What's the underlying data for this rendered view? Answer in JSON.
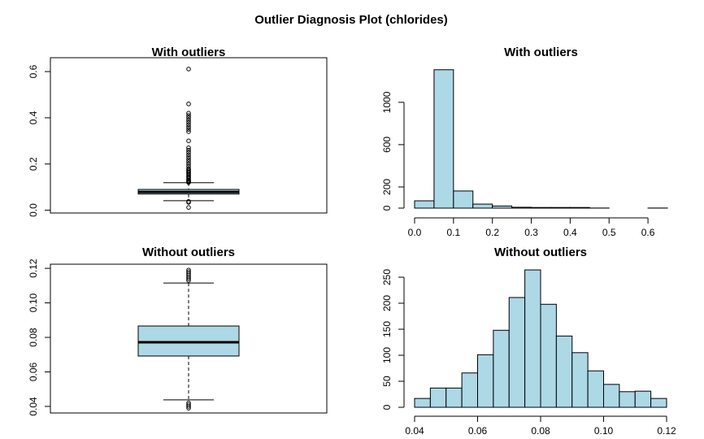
{
  "title": "Outlier Diagnosis Plot (chlorides)",
  "chart_data": [
    {
      "type": "box",
      "title": "With outliers",
      "color": "#add8e6",
      "q1": 0.07,
      "median": 0.079,
      "q3": 0.09,
      "whisker_low": 0.041,
      "whisker_high": 0.119,
      "outliers": [
        0.012,
        0.034,
        0.038,
        0.12,
        0.122,
        0.125,
        0.128,
        0.13,
        0.135,
        0.14,
        0.145,
        0.15,
        0.155,
        0.16,
        0.165,
        0.17,
        0.175,
        0.18,
        0.19,
        0.2,
        0.21,
        0.22,
        0.23,
        0.24,
        0.25,
        0.26,
        0.27,
        0.3,
        0.34,
        0.35,
        0.36,
        0.37,
        0.38,
        0.39,
        0.4,
        0.41,
        0.42,
        0.46,
        0.611
      ],
      "ylim": [
        -0.012,
        0.66
      ],
      "yticks": [
        {
          "value": 0,
          "label": "0.0"
        },
        0.2,
        0.4,
        0.6
      ]
    },
    {
      "type": "histogram",
      "title": "With outliers",
      "color": "#add8e6",
      "bins": [
        0,
        0.05,
        0.1,
        0.15,
        0.2,
        0.25,
        0.3,
        0.35,
        0.4,
        0.45,
        0.5,
        0.55,
        0.6,
        0.65
      ],
      "values": [
        69,
        1308,
        162,
        38,
        20,
        8,
        6,
        6,
        6,
        1,
        0,
        0,
        1
      ],
      "xlim": [
        0,
        0.65
      ],
      "ylim": [
        0,
        1360
      ],
      "xticks": [
        {
          "value": 0,
          "label": "0.0"
        },
        0.1,
        0.2,
        0.3,
        0.4,
        0.5,
        0.6
      ],
      "yticks": [
        0,
        200,
        600,
        1000
      ]
    },
    {
      "type": "box",
      "title": "Without outliers",
      "color": "#add8e6",
      "q1": 0.0692,
      "median": 0.0772,
      "q3": 0.0866,
      "whisker_low": 0.0438,
      "whisker_high": 0.1115,
      "outliers": [
        0.039,
        0.04,
        0.041,
        0.042,
        0.113,
        0.114,
        0.115,
        0.116,
        0.117,
        0.118,
        0.119
      ],
      "ylim": [
        0.0362,
        0.1224
      ],
      "yticks": [
        0.04,
        0.06,
        0.08,
        {
          "value": 0.1,
          "label": "0.10"
        },
        0.12
      ]
    },
    {
      "type": "histogram",
      "title": "Without outliers",
      "color": "#add8e6",
      "bins": [
        0.04,
        0.045,
        0.05,
        0.055,
        0.06,
        0.065,
        0.07,
        0.075,
        0.08,
        0.085,
        0.09,
        0.095,
        0.1,
        0.105,
        0.11,
        0.115,
        0.12
      ],
      "values": [
        17,
        37,
        37,
        66,
        101,
        148,
        211,
        264,
        198,
        137,
        105,
        70,
        44,
        30,
        31,
        17
      ],
      "xlim": [
        0.04,
        0.12
      ],
      "ylim": [
        0,
        275
      ],
      "xticks": [
        0.04,
        0.06,
        0.08,
        {
          "value": 0.1,
          "label": "0.10"
        },
        0.12
      ],
      "yticks": [
        0,
        50,
        100,
        150,
        200,
        250
      ]
    }
  ]
}
